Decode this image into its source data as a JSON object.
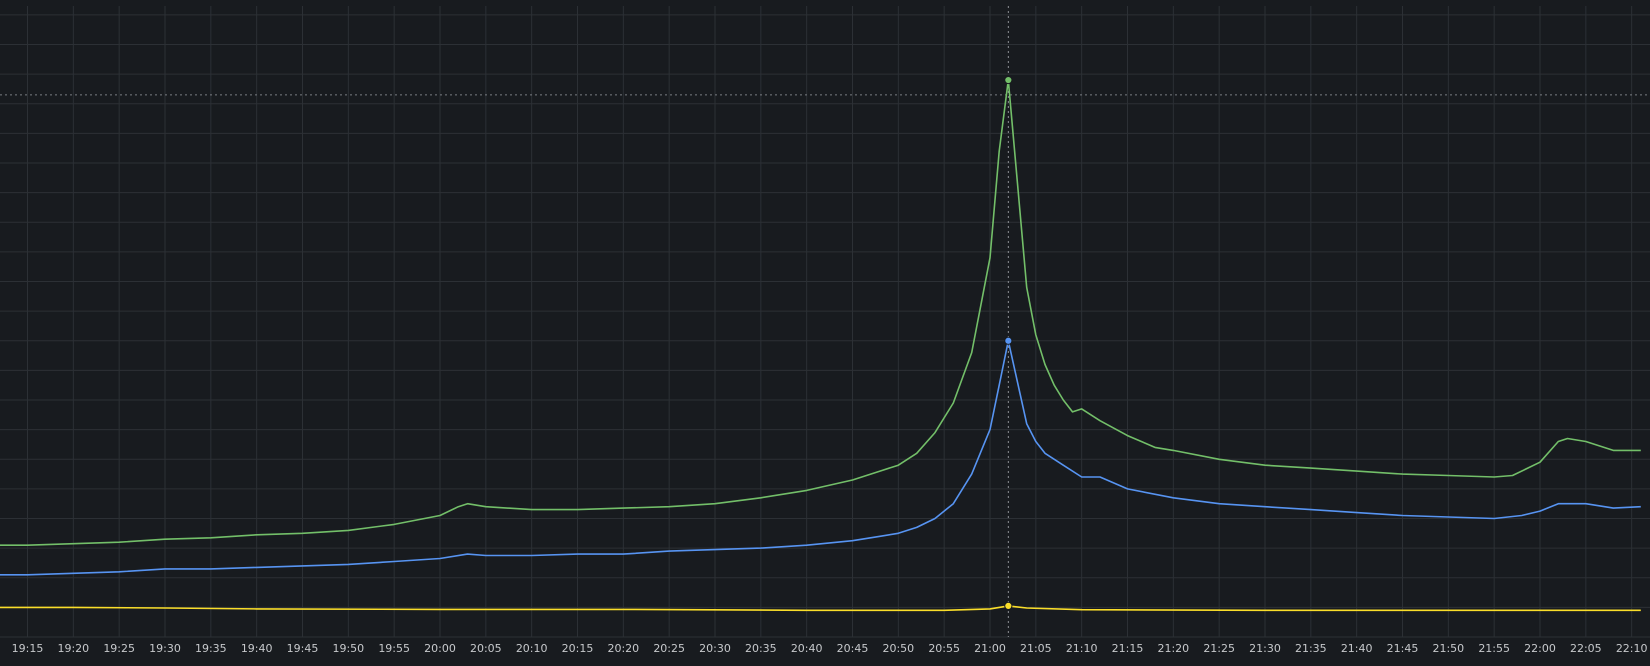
{
  "chart_data": {
    "type": "line",
    "title": "",
    "xlabel": "",
    "ylabel": "",
    "grid": true,
    "legend": "none",
    "x_ticks": [
      "19:15",
      "19:20",
      "19:25",
      "19:30",
      "19:35",
      "19:40",
      "19:45",
      "19:50",
      "19:55",
      "20:00",
      "20:05",
      "20:10",
      "20:15",
      "20:20",
      "20:25",
      "20:30",
      "20:35",
      "20:40",
      "20:45",
      "20:50",
      "20:55",
      "21:00",
      "21:05",
      "21:10",
      "21:15",
      "21:20",
      "21:25",
      "21:30",
      "21:35",
      "21:40",
      "21:45",
      "21:50",
      "21:55",
      "22:00",
      "22:05",
      "22:10"
    ],
    "x_range": [
      "19:12",
      "22:12"
    ],
    "y_range": [
      0,
      21.3
    ],
    "hover_x": "21:02",
    "threshold_y": 18.3,
    "series": [
      {
        "color": "#73bf69",
        "points": [
          [
            "19:12",
            3.1
          ],
          [
            "19:15",
            3.1
          ],
          [
            "19:20",
            3.15
          ],
          [
            "19:25",
            3.2
          ],
          [
            "19:30",
            3.3
          ],
          [
            "19:35",
            3.35
          ],
          [
            "19:40",
            3.45
          ],
          [
            "19:45",
            3.5
          ],
          [
            "19:50",
            3.6
          ],
          [
            "19:55",
            3.8
          ],
          [
            "20:00",
            4.1
          ],
          [
            "20:02",
            4.4
          ],
          [
            "20:03",
            4.5
          ],
          [
            "20:05",
            4.4
          ],
          [
            "20:10",
            4.3
          ],
          [
            "20:15",
            4.3
          ],
          [
            "20:20",
            4.35
          ],
          [
            "20:25",
            4.4
          ],
          [
            "20:30",
            4.5
          ],
          [
            "20:35",
            4.7
          ],
          [
            "20:40",
            4.95
          ],
          [
            "20:45",
            5.3
          ],
          [
            "20:48",
            5.6
          ],
          [
            "20:50",
            5.8
          ],
          [
            "20:52",
            6.2
          ],
          [
            "20:54",
            6.9
          ],
          [
            "20:56",
            7.9
          ],
          [
            "20:58",
            9.6
          ],
          [
            "21:00",
            12.8
          ],
          [
            "21:01",
            16.4
          ],
          [
            "21:02",
            18.8
          ],
          [
            "21:03",
            15.3
          ],
          [
            "21:04",
            11.8
          ],
          [
            "21:05",
            10.2
          ],
          [
            "21:06",
            9.2
          ],
          [
            "21:07",
            8.5
          ],
          [
            "21:08",
            8.0
          ],
          [
            "21:09",
            7.6
          ],
          [
            "21:10",
            7.7
          ],
          [
            "21:12",
            7.3
          ],
          [
            "21:15",
            6.8
          ],
          [
            "21:18",
            6.4
          ],
          [
            "21:20",
            6.3
          ],
          [
            "21:25",
            6.0
          ],
          [
            "21:30",
            5.8
          ],
          [
            "21:35",
            5.7
          ],
          [
            "21:40",
            5.6
          ],
          [
            "21:45",
            5.5
          ],
          [
            "21:50",
            5.45
          ],
          [
            "21:55",
            5.4
          ],
          [
            "21:57",
            5.45
          ],
          [
            "22:00",
            5.9
          ],
          [
            "22:02",
            6.6
          ],
          [
            "22:03",
            6.7
          ],
          [
            "22:05",
            6.6
          ],
          [
            "22:08",
            6.3
          ],
          [
            "22:11",
            6.3
          ]
        ]
      },
      {
        "color": "#5794f2",
        "points": [
          [
            "19:12",
            2.1
          ],
          [
            "19:15",
            2.1
          ],
          [
            "19:20",
            2.15
          ],
          [
            "19:25",
            2.2
          ],
          [
            "19:30",
            2.3
          ],
          [
            "19:35",
            2.3
          ],
          [
            "19:40",
            2.35
          ],
          [
            "19:45",
            2.4
          ],
          [
            "19:50",
            2.45
          ],
          [
            "19:55",
            2.55
          ],
          [
            "20:00",
            2.65
          ],
          [
            "20:03",
            2.8
          ],
          [
            "20:05",
            2.75
          ],
          [
            "20:10",
            2.75
          ],
          [
            "20:15",
            2.8
          ],
          [
            "20:20",
            2.8
          ],
          [
            "20:25",
            2.9
          ],
          [
            "20:30",
            2.95
          ],
          [
            "20:35",
            3.0
          ],
          [
            "20:40",
            3.1
          ],
          [
            "20:45",
            3.25
          ],
          [
            "20:48",
            3.4
          ],
          [
            "20:50",
            3.5
          ],
          [
            "20:52",
            3.7
          ],
          [
            "20:54",
            4.0
          ],
          [
            "20:56",
            4.5
          ],
          [
            "20:58",
            5.5
          ],
          [
            "21:00",
            7.0
          ],
          [
            "21:01",
            8.5
          ],
          [
            "21:02",
            10.0
          ],
          [
            "21:03",
            8.6
          ],
          [
            "21:04",
            7.2
          ],
          [
            "21:05",
            6.6
          ],
          [
            "21:06",
            6.2
          ],
          [
            "21:08",
            5.8
          ],
          [
            "21:10",
            5.4
          ],
          [
            "21:12",
            5.4
          ],
          [
            "21:15",
            5.0
          ],
          [
            "21:20",
            4.7
          ],
          [
            "21:25",
            4.5
          ],
          [
            "21:30",
            4.4
          ],
          [
            "21:35",
            4.3
          ],
          [
            "21:40",
            4.2
          ],
          [
            "21:45",
            4.1
          ],
          [
            "21:50",
            4.05
          ],
          [
            "21:55",
            4.0
          ],
          [
            "21:58",
            4.1
          ],
          [
            "22:00",
            4.25
          ],
          [
            "22:02",
            4.5
          ],
          [
            "22:05",
            4.5
          ],
          [
            "22:08",
            4.35
          ],
          [
            "22:11",
            4.4
          ]
        ]
      },
      {
        "color": "#fade2a",
        "points": [
          [
            "19:12",
            1.0
          ],
          [
            "19:20",
            1.0
          ],
          [
            "19:30",
            0.98
          ],
          [
            "19:40",
            0.95
          ],
          [
            "20:00",
            0.93
          ],
          [
            "20:20",
            0.93
          ],
          [
            "20:40",
            0.9
          ],
          [
            "20:55",
            0.9
          ],
          [
            "21:00",
            0.95
          ],
          [
            "21:02",
            1.05
          ],
          [
            "21:04",
            0.98
          ],
          [
            "21:10",
            0.92
          ],
          [
            "21:30",
            0.9
          ],
          [
            "21:50",
            0.9
          ],
          [
            "22:11",
            0.9
          ]
        ]
      }
    ]
  }
}
